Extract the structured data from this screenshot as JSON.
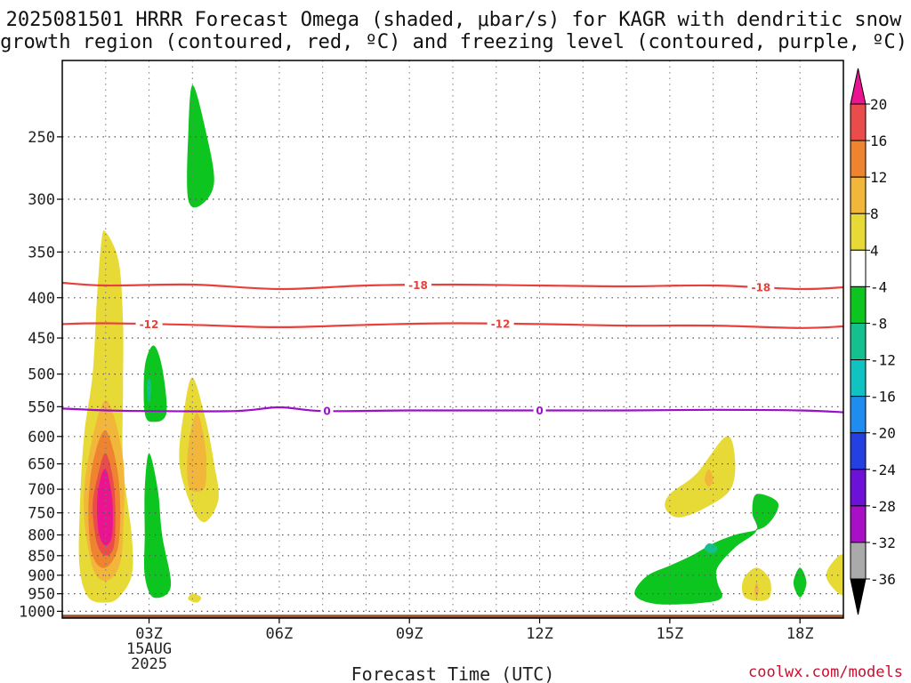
{
  "title_line1": "2025081501 HRRR Forecast Omega (shaded, μbar/s) for KAGR with dendritic snow",
  "title_line2": "growth region (contoured, red, ºC) and freezing level (contoured, purple, ºC)",
  "credit": "coolwx.com/models",
  "chart_data": {
    "type": "heatmap",
    "xlabel": "Forecast Time (UTC)",
    "ylabel": "",
    "x_range_hours_utc": [
      1,
      19
    ],
    "y_range_hpa": [
      1020,
      200
    ],
    "y_scale": "log-pressure",
    "grid": true,
    "x_ticks": [
      {
        "hour": 3,
        "label": "03Z",
        "sub1": "15AUG",
        "sub2": "2025"
      },
      {
        "hour": 6,
        "label": "06Z"
      },
      {
        "hour": 9,
        "label": "09Z"
      },
      {
        "hour": 12,
        "label": "12Z"
      },
      {
        "hour": 15,
        "label": "15Z"
      },
      {
        "hour": 18,
        "label": "18Z"
      }
    ],
    "y_ticks": [
      250,
      300,
      350,
      400,
      450,
      500,
      550,
      600,
      650,
      700,
      750,
      800,
      850,
      900,
      950,
      1000
    ],
    "ground_level_hpa": 1010,
    "ground_color": "#a0522d",
    "contours": [
      {
        "level": "-18",
        "color": "#e8403a",
        "points": [
          [
            1,
            383
          ],
          [
            2,
            386
          ],
          [
            4,
            385
          ],
          [
            6,
            390
          ],
          [
            8,
            386
          ],
          [
            10,
            385
          ],
          [
            12,
            386
          ],
          [
            14,
            387
          ],
          [
            16,
            386
          ],
          [
            18,
            390
          ],
          [
            19,
            388
          ]
        ],
        "labels": [
          {
            "x": 9.2,
            "text": "-18"
          },
          {
            "x": 17.1,
            "text": "-18"
          }
        ]
      },
      {
        "level": "-12",
        "color": "#e8403a",
        "points": [
          [
            1,
            432
          ],
          [
            2,
            431
          ],
          [
            4,
            433
          ],
          [
            6,
            436
          ],
          [
            8,
            433
          ],
          [
            10,
            431
          ],
          [
            12,
            432
          ],
          [
            14,
            434
          ],
          [
            16,
            434
          ],
          [
            18,
            437
          ],
          [
            19,
            435
          ]
        ],
        "labels": [
          {
            "x": 3.0,
            "text": "-12"
          },
          {
            "x": 11.1,
            "text": "-12"
          }
        ]
      },
      {
        "level": "0",
        "color": "#9b10c8",
        "points": [
          [
            1,
            553
          ],
          [
            2,
            556
          ],
          [
            3,
            557
          ],
          [
            5,
            557
          ],
          [
            6,
            551
          ],
          [
            7,
            557
          ],
          [
            9,
            556
          ],
          [
            12,
            556
          ],
          [
            14,
            556
          ],
          [
            16,
            555
          ],
          [
            18,
            556
          ],
          [
            19,
            559
          ]
        ],
        "labels": [
          {
            "x": 7.1,
            "text": "0"
          },
          {
            "x": 12.0,
            "text": "0"
          }
        ]
      }
    ],
    "shaded_regions": [
      {
        "value": 4,
        "color": "#e8da36",
        "pts": [
          [
            2.0,
            330
          ],
          [
            2.3,
            360
          ],
          [
            2.4,
            430
          ],
          [
            2.4,
            520
          ],
          [
            2.4,
            650
          ],
          [
            2.6,
            800
          ],
          [
            2.6,
            900
          ],
          [
            2.3,
            960
          ],
          [
            2.0,
            975
          ],
          [
            1.6,
            960
          ],
          [
            1.4,
            880
          ],
          [
            1.4,
            750
          ],
          [
            1.5,
            600
          ],
          [
            1.7,
            500
          ],
          [
            1.8,
            400
          ],
          [
            1.9,
            340
          ]
        ]
      },
      {
        "value": 8,
        "color": "#f2b73a",
        "pts": [
          [
            2.0,
            540
          ],
          [
            2.4,
            640
          ],
          [
            2.4,
            800
          ],
          [
            2.3,
            880
          ],
          [
            2.0,
            915
          ],
          [
            1.7,
            880
          ],
          [
            1.5,
            750
          ],
          [
            1.6,
            640
          ]
        ]
      },
      {
        "value": 12,
        "color": "#ef8430",
        "pts": [
          [
            2.0,
            590
          ],
          [
            2.3,
            680
          ],
          [
            2.3,
            820
          ],
          [
            2.0,
            880
          ],
          [
            1.7,
            850
          ],
          [
            1.6,
            750
          ],
          [
            1.7,
            650
          ]
        ]
      },
      {
        "value": 16,
        "color": "#ea4b4b",
        "pts": [
          [
            2.0,
            630
          ],
          [
            2.2,
            700
          ],
          [
            2.2,
            820
          ],
          [
            2.0,
            850
          ],
          [
            1.8,
            820
          ],
          [
            1.7,
            740
          ],
          [
            1.8,
            680
          ]
        ]
      },
      {
        "value": 20,
        "color": "#ea1491",
        "pts": [
          [
            2.0,
            660
          ],
          [
            2.15,
            720
          ],
          [
            2.15,
            800
          ],
          [
            2.0,
            825
          ],
          [
            1.85,
            800
          ],
          [
            1.8,
            740
          ],
          [
            1.85,
            690
          ]
        ]
      },
      {
        "value": -4,
        "color": "#0cc51e",
        "pts": [
          [
            4.0,
            215
          ],
          [
            4.3,
            245
          ],
          [
            4.5,
            285
          ],
          [
            4.2,
            305
          ],
          [
            3.9,
            300
          ],
          [
            3.9,
            250
          ]
        ]
      },
      {
        "value": -4,
        "color": "#0cc51e",
        "pts": [
          [
            3.1,
            460
          ],
          [
            3.3,
            490
          ],
          [
            3.4,
            560
          ],
          [
            3.1,
            575
          ],
          [
            2.9,
            560
          ],
          [
            2.9,
            490
          ]
        ]
      },
      {
        "value": -8,
        "color": "#13c08e",
        "pts": [
          [
            3.0,
            505
          ],
          [
            3.05,
            520
          ],
          [
            3.0,
            545
          ],
          [
            2.95,
            520
          ]
        ]
      },
      {
        "value": -4,
        "color": "#0cc51e",
        "pts": [
          [
            3.0,
            630
          ],
          [
            3.2,
            700
          ],
          [
            3.3,
            800
          ],
          [
            3.5,
            930
          ],
          [
            3.1,
            960
          ],
          [
            2.9,
            900
          ],
          [
            2.9,
            800
          ],
          [
            2.9,
            700
          ]
        ]
      },
      {
        "value": 4,
        "color": "#e8da36",
        "pts": [
          [
            4.0,
            505
          ],
          [
            4.3,
            570
          ],
          [
            4.5,
            650
          ],
          [
            4.6,
            720
          ],
          [
            4.3,
            770
          ],
          [
            4.0,
            740
          ],
          [
            3.7,
            650
          ],
          [
            3.8,
            560
          ]
        ]
      },
      {
        "value": 8,
        "color": "#f2b73a",
        "pts": [
          [
            4.1,
            560
          ],
          [
            4.3,
            620
          ],
          [
            4.3,
            690
          ],
          [
            4.1,
            705
          ],
          [
            3.9,
            690
          ],
          [
            3.9,
            620
          ]
        ]
      },
      {
        "value": 4,
        "color": "#e8da36",
        "pts": [
          [
            4.0,
            950
          ],
          [
            4.2,
            960
          ],
          [
            4.1,
            975
          ],
          [
            3.9,
            965
          ]
        ]
      },
      {
        "value": 4,
        "color": "#e8da36",
        "pts": [
          [
            16.3,
            600
          ],
          [
            16.5,
            640
          ],
          [
            16.4,
            700
          ],
          [
            15.8,
            740
          ],
          [
            15.2,
            760
          ],
          [
            14.9,
            740
          ],
          [
            15.0,
            710
          ],
          [
            15.6,
            670
          ]
        ]
      },
      {
        "value": 8,
        "color": "#f2b73a",
        "pts": [
          [
            15.9,
            660
          ],
          [
            16.0,
            680
          ],
          [
            15.9,
            695
          ],
          [
            15.8,
            680
          ]
        ]
      },
      {
        "value": -4,
        "color": "#0cc51e",
        "pts": [
          [
            17.0,
            710
          ],
          [
            17.5,
            730
          ],
          [
            17.2,
            780
          ],
          [
            16.5,
            800
          ],
          [
            16.0,
            820
          ],
          [
            15.5,
            850
          ],
          [
            15.0,
            875
          ],
          [
            14.5,
            900
          ],
          [
            14.2,
            940
          ],
          [
            14.3,
            965
          ],
          [
            14.8,
            980
          ],
          [
            15.8,
            975
          ],
          [
            16.2,
            960
          ],
          [
            16.1,
            920
          ],
          [
            16.1,
            880
          ],
          [
            16.5,
            830
          ],
          [
            17.0,
            790
          ],
          [
            16.9,
            750
          ]
        ]
      },
      {
        "value": -8,
        "color": "#13c08e",
        "pts": [
          [
            15.9,
            820
          ],
          [
            16.1,
            830
          ],
          [
            16.0,
            845
          ],
          [
            15.8,
            835
          ]
        ]
      },
      {
        "value": 4,
        "color": "#e8da36",
        "pts": [
          [
            17.0,
            880
          ],
          [
            17.3,
            910
          ],
          [
            17.3,
            960
          ],
          [
            17.0,
            970
          ],
          [
            16.7,
            955
          ],
          [
            16.7,
            910
          ]
        ]
      },
      {
        "value": 8,
        "color": "#f2b73a",
        "pts": [
          [
            17.0,
            920
          ],
          [
            17.05,
            940
          ],
          [
            17.0,
            960
          ],
          [
            16.95,
            940
          ]
        ]
      },
      {
        "value": -4,
        "color": "#0cc51e",
        "pts": [
          [
            18.0,
            880
          ],
          [
            18.15,
            920
          ],
          [
            18.0,
            960
          ],
          [
            17.85,
            920
          ]
        ]
      },
      {
        "value": 4,
        "color": "#e8da36",
        "pts": [
          [
            18.9,
            850
          ],
          [
            19.1,
            860
          ],
          [
            19.1,
            940
          ],
          [
            18.9,
            950
          ],
          [
            18.6,
            900
          ]
        ]
      }
    ]
  },
  "colorbar": {
    "top_triangle_color": "#ea1491",
    "bottom_triangle_color": "#000000",
    "levels": [
      20,
      16,
      12,
      8,
      4,
      -4,
      -8,
      -12,
      -16,
      -20,
      -24,
      -28,
      -32,
      -36
    ],
    "bins": [
      {
        "range": "16 to 20",
        "color": "#ea4b4b"
      },
      {
        "range": "12 to 16",
        "color": "#ef8430"
      },
      {
        "range": "8 to 12",
        "color": "#f2b73a"
      },
      {
        "range": "4 to 8",
        "color": "#e8da36"
      },
      {
        "range": "-4 to 4",
        "color": "#ffffff"
      },
      {
        "range": "-8 to -4",
        "color": "#0cc51e"
      },
      {
        "range": "-12 to -8",
        "color": "#13c08e"
      },
      {
        "range": "-16 to -12",
        "color": "#10c2c2"
      },
      {
        "range": "-20 to -16",
        "color": "#1f8cf0"
      },
      {
        "range": "-24 to -20",
        "color": "#2540e0"
      },
      {
        "range": "-28 to -24",
        "color": "#6d10d8"
      },
      {
        "range": "-32 to -28",
        "color": "#a810c8"
      },
      {
        "range": "-36 to -32",
        "color": "#aaaaaa"
      }
    ]
  }
}
